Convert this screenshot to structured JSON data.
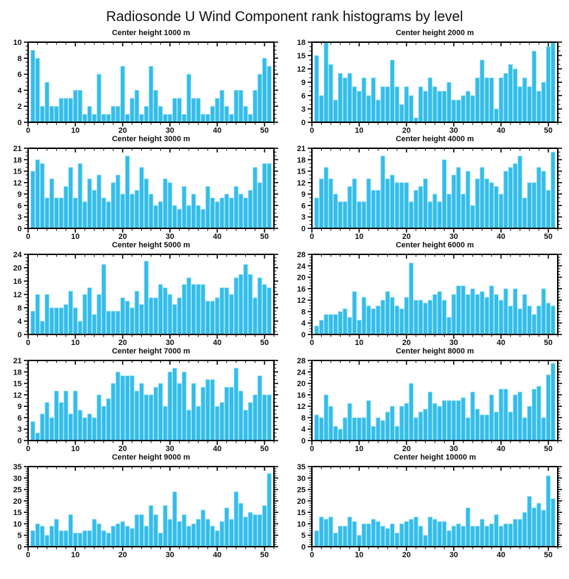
{
  "page_title": "Radiosonde U Wind Component rank histograms by level",
  "bar_color": "#35bce9",
  "bar_edge_color": "#a5e6fa",
  "axis_color": "#000000",
  "chart_data": [
    {
      "type": "bar",
      "title": "Center height 1000 m",
      "xlabel": "",
      "ylabel": "",
      "xlim": [
        0,
        52
      ],
      "ylim": [
        0,
        10
      ],
      "xticks": [
        0,
        10,
        20,
        30,
        40,
        50
      ],
      "yticks": [
        0,
        2,
        4,
        6,
        8,
        10
      ],
      "x_start": 1,
      "values": [
        9,
        8,
        2,
        5,
        2,
        2,
        3,
        3,
        3,
        4,
        4,
        1,
        2,
        1,
        6,
        1,
        1,
        2,
        2,
        7,
        1,
        3,
        4,
        1,
        2,
        7,
        4,
        2,
        1,
        1,
        3,
        3,
        1,
        6,
        3,
        3,
        1,
        1,
        2,
        3,
        4,
        2,
        1,
        4,
        4,
        2,
        1,
        4,
        6,
        8,
        7
      ]
    },
    {
      "type": "bar",
      "title": "Center height 2000 m",
      "xlabel": "",
      "ylabel": "",
      "xlim": [
        0,
        52
      ],
      "ylim": [
        0,
        18
      ],
      "xticks": [
        0,
        10,
        20,
        30,
        40,
        50
      ],
      "yticks": [
        0,
        3,
        6,
        9,
        12,
        15,
        18
      ],
      "x_start": 1,
      "values": [
        15,
        6,
        18,
        13,
        5,
        11,
        10,
        11,
        8,
        7,
        10,
        6,
        10,
        5,
        8,
        8,
        14,
        8,
        4,
        8,
        6,
        1,
        8,
        7,
        10,
        8,
        7,
        7,
        9,
        5,
        5,
        6,
        7,
        6,
        10,
        14,
        10,
        10,
        3,
        10,
        11,
        13,
        12,
        8,
        10,
        8,
        16,
        7,
        9,
        17,
        18
      ]
    },
    {
      "type": "bar",
      "title": "Center height 3000 m",
      "xlabel": "",
      "ylabel": "",
      "xlim": [
        0,
        52
      ],
      "ylim": [
        0,
        21
      ],
      "xticks": [
        0,
        10,
        20,
        30,
        40,
        50
      ],
      "yticks": [
        0,
        3,
        6,
        9,
        12,
        15,
        18,
        21
      ],
      "x_start": 1,
      "values": [
        15,
        18,
        17,
        8,
        13,
        8,
        8,
        11,
        16,
        8,
        17,
        7,
        13,
        10,
        14,
        8,
        7,
        12,
        14,
        9,
        19,
        9,
        10,
        16,
        13,
        9,
        6,
        7,
        13,
        12,
        6,
        5,
        11,
        6,
        9,
        6,
        5,
        11,
        8,
        7,
        8,
        9,
        8,
        11,
        9,
        8,
        10,
        16,
        12,
        17,
        17
      ]
    },
    {
      "type": "bar",
      "title": "Center height 4000 m",
      "xlabel": "",
      "ylabel": "",
      "xlim": [
        0,
        52
      ],
      "ylim": [
        0,
        21
      ],
      "xticks": [
        0,
        10,
        20,
        30,
        40,
        50
      ],
      "yticks": [
        0,
        3,
        6,
        9,
        12,
        15,
        18,
        21
      ],
      "x_start": 1,
      "values": [
        8,
        13,
        16,
        13,
        9,
        7,
        7,
        11,
        13,
        7,
        7,
        13,
        10,
        10,
        19,
        13,
        14,
        12,
        12,
        12,
        7,
        10,
        11,
        13,
        7,
        9,
        7,
        18,
        9,
        14,
        16,
        9,
        15,
        6,
        13,
        16,
        13,
        12,
        11,
        9,
        15,
        16,
        17,
        19,
        8,
        12,
        12,
        16,
        15,
        10,
        20
      ]
    },
    {
      "type": "bar",
      "title": "Center height 5000 m",
      "xlabel": "",
      "ylabel": "",
      "xlim": [
        0,
        52
      ],
      "ylim": [
        0,
        24
      ],
      "xticks": [
        0,
        10,
        20,
        30,
        40,
        50
      ],
      "yticks": [
        0,
        4,
        8,
        12,
        16,
        20,
        24
      ],
      "x_start": 1,
      "values": [
        7,
        12,
        4,
        12,
        8,
        8,
        8,
        9,
        13,
        8,
        4,
        12,
        14,
        6,
        12,
        21,
        7,
        7,
        7,
        11,
        10,
        8,
        13,
        9,
        22,
        11,
        11,
        15,
        14,
        12,
        9,
        11,
        15,
        17,
        15,
        15,
        15,
        10,
        10,
        11,
        14,
        14,
        12,
        17,
        18,
        21,
        18,
        11,
        17,
        15,
        14
      ]
    },
    {
      "type": "bar",
      "title": "Center height 6000 m",
      "xlabel": "",
      "ylabel": "",
      "xlim": [
        0,
        52
      ],
      "ylim": [
        0,
        28
      ],
      "xticks": [
        0,
        10,
        20,
        30,
        40,
        50
      ],
      "yticks": [
        0,
        4,
        8,
        12,
        16,
        20,
        24,
        28
      ],
      "x_start": 1,
      "values": [
        3,
        5,
        7,
        7,
        7,
        8,
        9,
        6,
        15,
        5,
        13,
        10,
        9,
        10,
        12,
        15,
        13,
        10,
        9,
        13,
        25,
        12,
        12,
        11,
        12,
        14,
        15,
        12,
        6,
        14,
        17,
        17,
        14,
        16,
        14,
        15,
        13,
        17,
        14,
        12,
        16,
        10,
        16,
        9,
        14,
        10,
        7,
        10,
        16,
        11,
        10
      ]
    },
    {
      "type": "bar",
      "title": "Center height 7000 m",
      "xlabel": "",
      "ylabel": "",
      "xlim": [
        0,
        52
      ],
      "ylim": [
        0,
        21
      ],
      "xticks": [
        0,
        10,
        20,
        30,
        40,
        50
      ],
      "yticks": [
        0,
        3,
        6,
        9,
        12,
        15,
        18,
        21
      ],
      "x_start": 1,
      "values": [
        5,
        2,
        7,
        10,
        6,
        13,
        10,
        13,
        7,
        13,
        8,
        6,
        7,
        6,
        12,
        9,
        11,
        15,
        18,
        17,
        17,
        17,
        13,
        15,
        12,
        12,
        14,
        15,
        9,
        18,
        19,
        15,
        18,
        8,
        15,
        9,
        14,
        16,
        16,
        9,
        10,
        14,
        14,
        19,
        13,
        8,
        10,
        12,
        17,
        12,
        12
      ]
    },
    {
      "type": "bar",
      "title": "Center height 8000 m",
      "xlabel": "",
      "ylabel": "",
      "xlim": [
        0,
        52
      ],
      "ylim": [
        0,
        28
      ],
      "xticks": [
        0,
        10,
        20,
        30,
        40,
        50
      ],
      "yticks": [
        0,
        4,
        8,
        12,
        16,
        20,
        24,
        28
      ],
      "x_start": 1,
      "values": [
        9,
        8,
        16,
        12,
        5,
        4,
        8,
        13,
        8,
        8,
        8,
        14,
        5,
        8,
        7,
        10,
        12,
        5,
        12,
        13,
        20,
        8,
        10,
        11,
        17,
        13,
        12,
        14,
        14,
        14,
        14,
        15,
        8,
        17,
        11,
        9,
        9,
        16,
        10,
        18,
        18,
        10,
        16,
        17,
        8,
        12,
        18,
        19,
        8,
        23,
        27
      ]
    },
    {
      "type": "bar",
      "title": "Center height 9000 m",
      "xlabel": "",
      "ylabel": "",
      "xlim": [
        0,
        52
      ],
      "ylim": [
        0,
        35
      ],
      "xticks": [
        0,
        10,
        20,
        30,
        40,
        50
      ],
      "yticks": [
        0,
        5,
        10,
        15,
        20,
        25,
        30,
        35
      ],
      "x_start": 1,
      "values": [
        7,
        10,
        9,
        5,
        9,
        12,
        7,
        7,
        14,
        6,
        6,
        7,
        7,
        12,
        10,
        7,
        6,
        9,
        10,
        11,
        9,
        8,
        14,
        14,
        9,
        18,
        14,
        6,
        18,
        12,
        24,
        11,
        14,
        9,
        10,
        12,
        16,
        12,
        9,
        7,
        11,
        17,
        12,
        24,
        19,
        13,
        15,
        14,
        14,
        18,
        32
      ]
    },
    {
      "type": "bar",
      "title": "Center height 10000 m",
      "xlabel": "",
      "ylabel": "",
      "xlim": [
        0,
        52
      ],
      "ylim": [
        0,
        35
      ],
      "xticks": [
        0,
        10,
        20,
        30,
        40,
        50
      ],
      "yticks": [
        0,
        5,
        10,
        15,
        20,
        25,
        30,
        35
      ],
      "x_start": 1,
      "values": [
        7,
        13,
        12,
        13,
        6,
        9,
        9,
        13,
        11,
        5,
        10,
        10,
        12,
        11,
        9,
        8,
        10,
        6,
        10,
        11,
        12,
        13,
        9,
        5,
        13,
        12,
        11,
        11,
        7,
        9,
        10,
        9,
        17,
        9,
        9,
        12,
        9,
        10,
        14,
        9,
        10,
        10,
        12,
        12,
        15,
        22,
        17,
        19,
        16,
        31,
        21
      ]
    }
  ]
}
